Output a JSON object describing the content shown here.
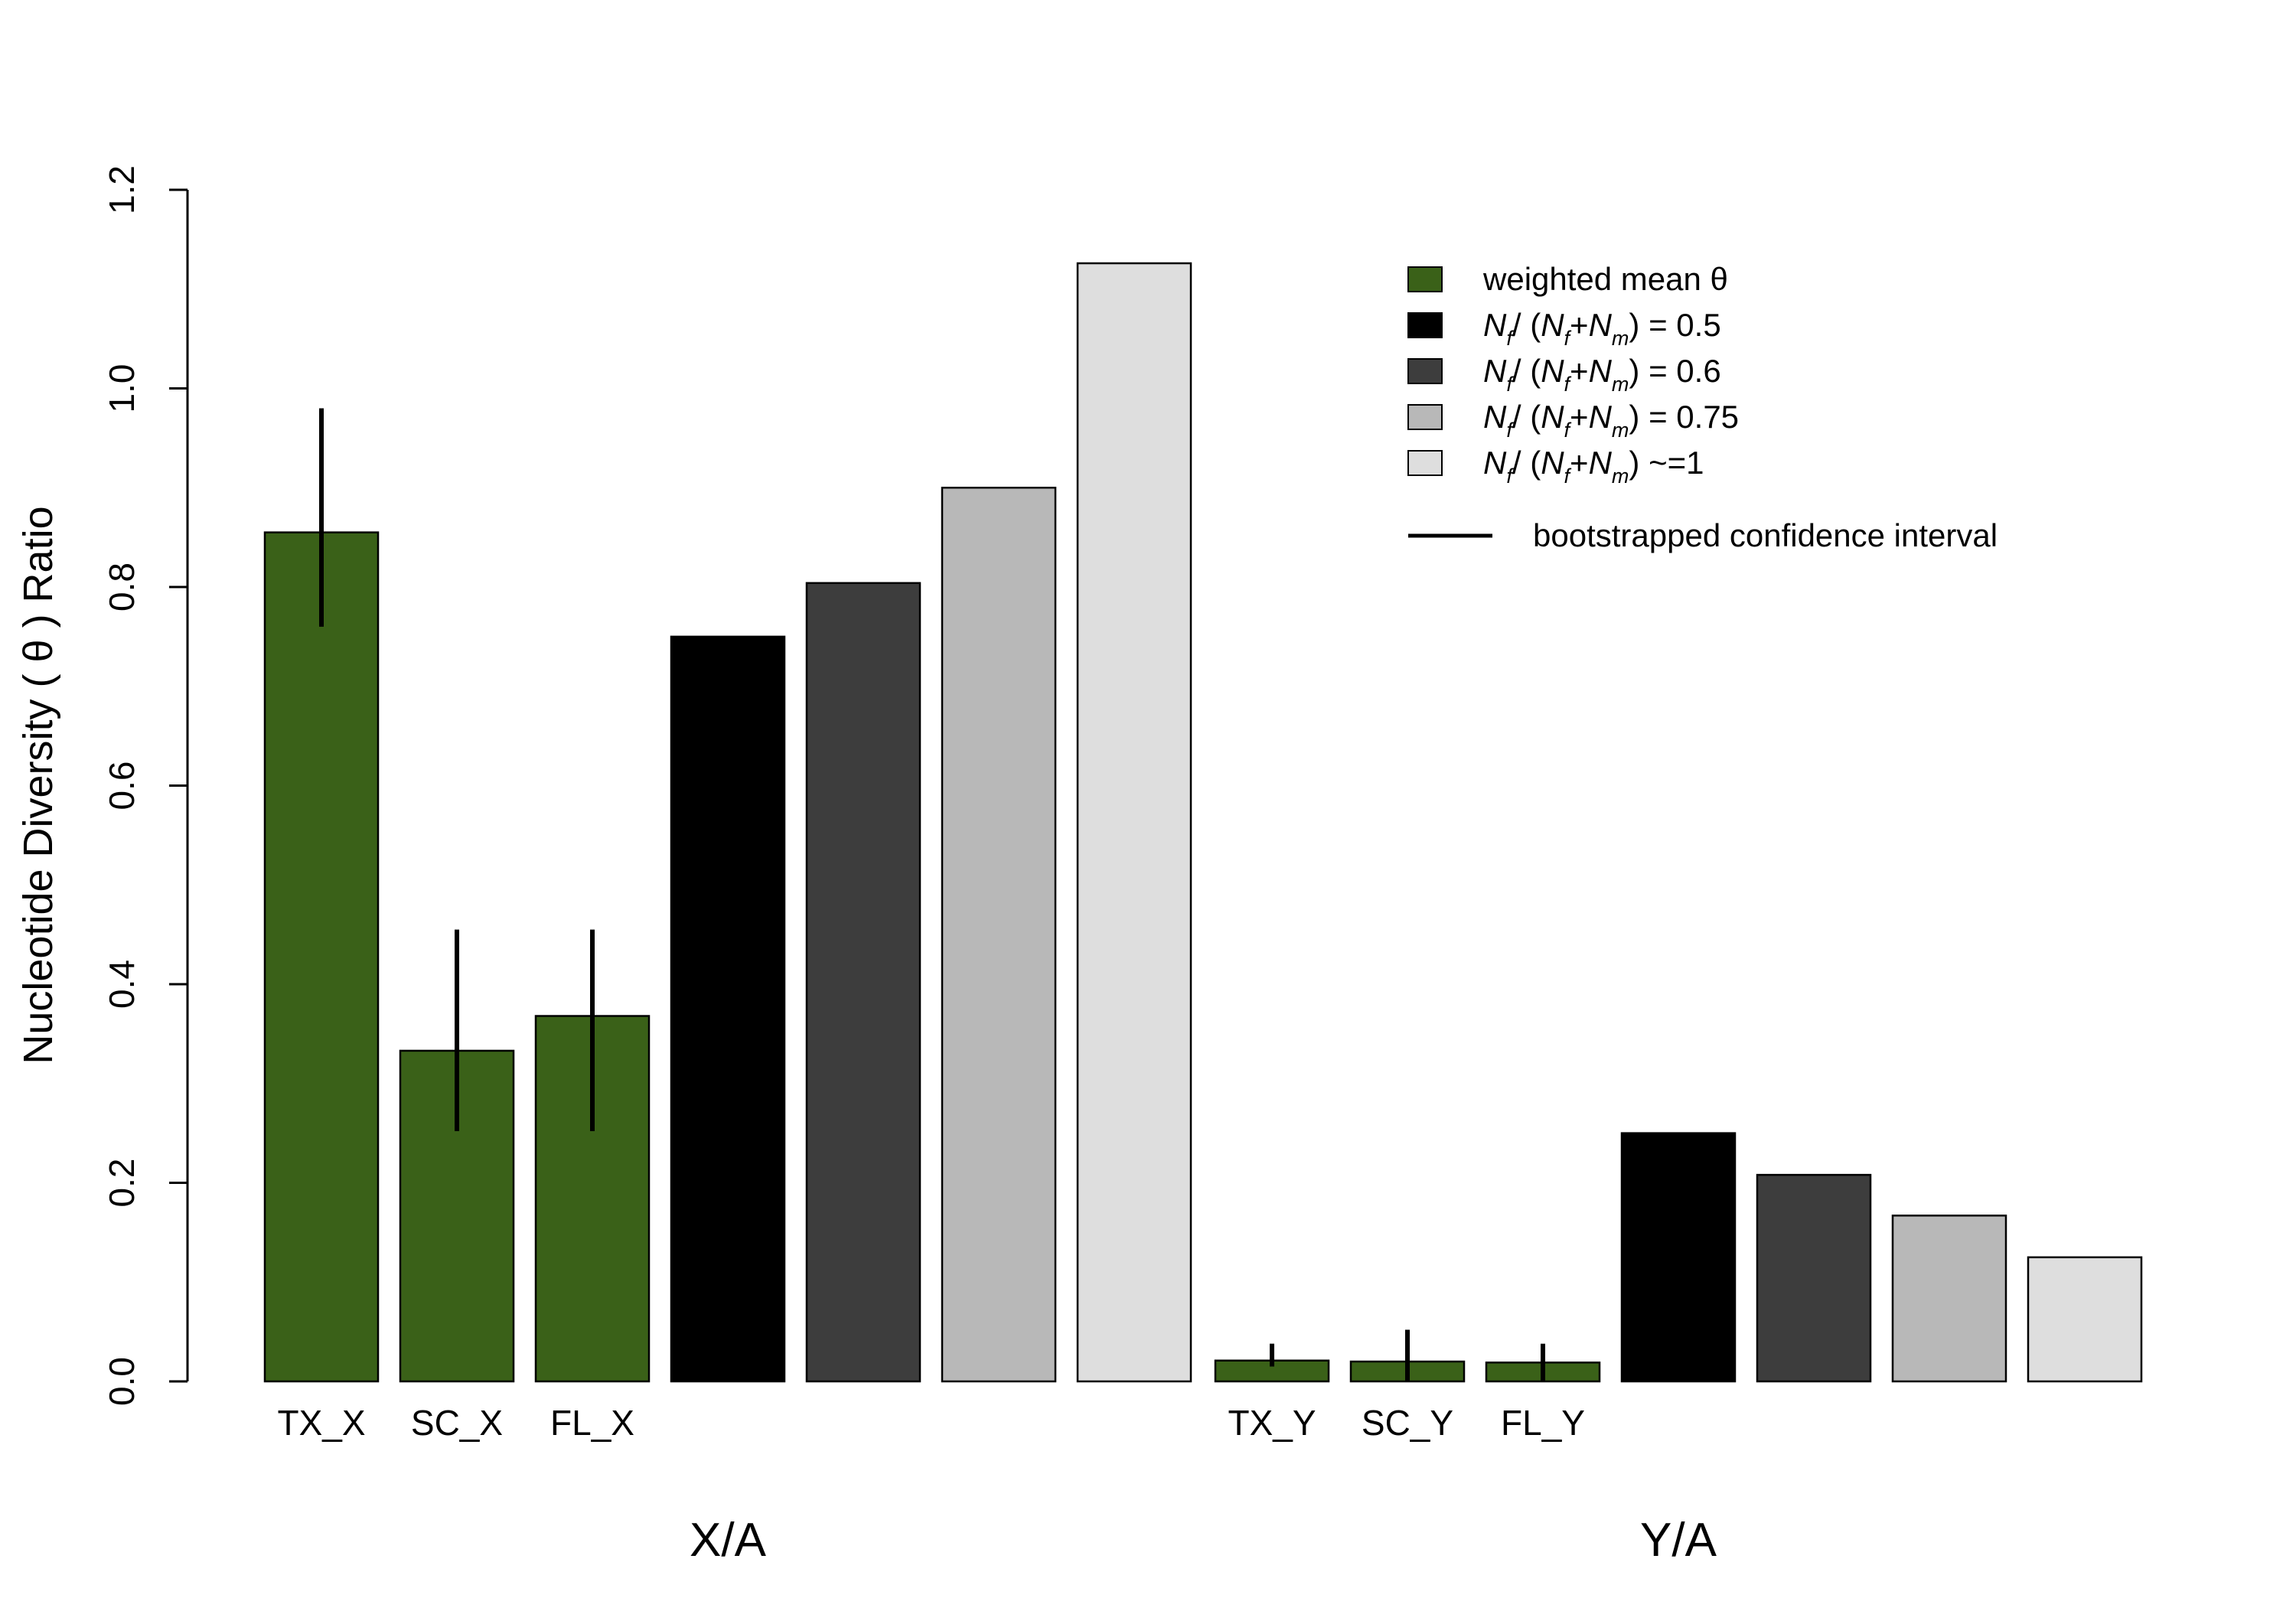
{
  "chart_data": {
    "type": "bar",
    "ylabel_parts": [
      "Nucleotide Diversity ( ",
      "θ",
      " ) Ratio"
    ],
    "ylim": [
      0,
      1.2
    ],
    "yticks": [
      "0.0",
      "0.2",
      "0.4",
      "0.6",
      "0.8",
      "1.0",
      "1.2"
    ],
    "grid": false,
    "legend_position": "top-right",
    "colors": {
      "observed": "#3a6118",
      "ratio_0_5": "#000000",
      "ratio_0_6": "#3d3d3d",
      "ratio_0_75": "#b8b8b8",
      "ratio_1": "#dedede"
    },
    "groups": [
      {
        "label": "X/A",
        "bars": [
          {
            "label": "TX_X",
            "value": 0.855,
            "ci": [
              0.76,
              0.98
            ],
            "color_key": "observed"
          },
          {
            "label": "SC_X",
            "value": 0.333,
            "ci": [
              0.252,
              0.455
            ],
            "color_key": "observed"
          },
          {
            "label": "FL_X",
            "value": 0.368,
            "ci": [
              0.252,
              0.455
            ],
            "color_key": "observed"
          },
          {
            "label": "",
            "value": 0.75,
            "color_key": "ratio_0_5"
          },
          {
            "label": "",
            "value": 0.804,
            "color_key": "ratio_0_6"
          },
          {
            "label": "",
            "value": 0.9,
            "color_key": "ratio_0_75"
          },
          {
            "label": "",
            "value": 1.126,
            "color_key": "ratio_1"
          }
        ]
      },
      {
        "label": "Y/A",
        "bars": [
          {
            "label": "TX_Y",
            "value": 0.021,
            "ci": [
              0.015,
              0.038
            ],
            "color_key": "observed"
          },
          {
            "label": "SC_Y",
            "value": 0.02,
            "ci": [
              0.0,
              0.052
            ],
            "color_key": "observed"
          },
          {
            "label": "FL_Y",
            "value": 0.019,
            "ci": [
              0.0,
              0.038
            ],
            "color_key": "observed"
          },
          {
            "label": "",
            "value": 0.25,
            "color_key": "ratio_0_5"
          },
          {
            "label": "",
            "value": 0.208,
            "color_key": "ratio_0_6"
          },
          {
            "label": "",
            "value": 0.167,
            "color_key": "ratio_0_75"
          },
          {
            "label": "",
            "value": 0.125,
            "color_key": "ratio_1"
          }
        ]
      }
    ],
    "legend": [
      {
        "kind": "box",
        "color_key": "observed",
        "text": "weighted mean θ"
      },
      {
        "kind": "box",
        "color_key": "ratio_0_5",
        "value": "0.5"
      },
      {
        "kind": "box",
        "color_key": "ratio_0_6",
        "value": "0.6"
      },
      {
        "kind": "box",
        "color_key": "ratio_0_75",
        "value": "0.75"
      },
      {
        "kind": "box",
        "color_key": "ratio_1",
        "approx": "~=1"
      },
      {
        "kind": "line",
        "text": "bootstrapped confidence interval"
      }
    ],
    "legend_formula": {
      "num_var": "N",
      "num_sub": "f",
      "slash_open": "/ (",
      "den_var1": "N",
      "den_sub1": "f",
      "plus": "+",
      "den_var2": "N",
      "den_sub2": "m",
      "close": ")",
      "equals": " = "
    }
  }
}
